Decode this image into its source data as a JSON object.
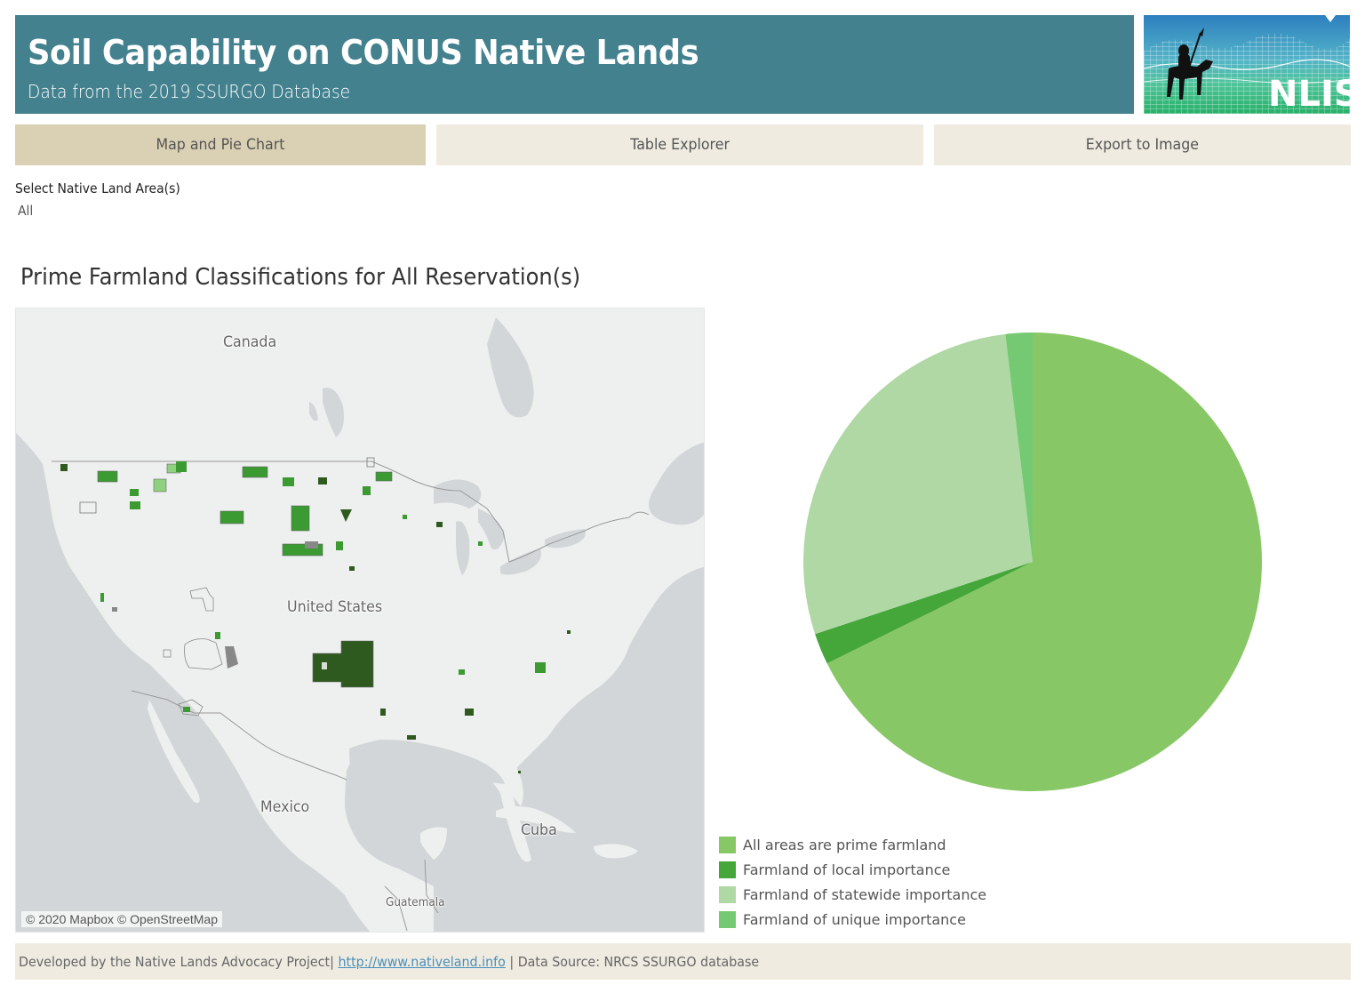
{
  "header": {
    "title": "Soil Capability on CONUS Native Lands",
    "subtitle": "Data from the 2019 SSURGO Database",
    "background_color": "#43818f",
    "logo": {
      "text": "NLIS",
      "icon": "horse-rider-logo-icon"
    }
  },
  "tabs": [
    {
      "label": "Map and Pie Chart",
      "active": true
    },
    {
      "label": "Table Explorer",
      "active": false
    },
    {
      "label": "Export to Image",
      "active": false
    }
  ],
  "filter": {
    "label": "Select Native Land Area(s)",
    "value": "All"
  },
  "section": {
    "title": "Prime Farmland Classifications for All Reservation(s)"
  },
  "map": {
    "labels": {
      "canada": "Canada",
      "united_states": "United States",
      "mexico": "Mexico",
      "cuba": "Cuba",
      "guatemala": "Guatemala"
    },
    "attribution": "© 2020 Mapbox © OpenStreetMap",
    "colors": {
      "water": "#d3d6d8",
      "land": "#eeefef",
      "border": "#9a9a9a",
      "reservation_dark": "#2f5a1f",
      "reservation_mid": "#3b9a32",
      "reservation_light": "#8fd17f"
    }
  },
  "legend": {
    "items": [
      {
        "label": "All areas are prime farmland",
        "color": "#88c766"
      },
      {
        "label": "Farmland of local importance",
        "color": "#45a63a"
      },
      {
        "label": "Farmland of statewide importance",
        "color": "#afd8a4"
      },
      {
        "label": "Farmland of unique importance",
        "color": "#76c973"
      }
    ]
  },
  "chart_data": {
    "type": "pie",
    "title": "Prime Farmland Classifications for All Reservation(s)",
    "categories": [
      "All areas are prime farmland",
      "Farmland of local importance",
      "Farmland of statewide importance",
      "Farmland of unique importance"
    ],
    "values": [
      67.7,
      2.2,
      28.2,
      1.9
    ],
    "units": "percent (estimated from slice angles)",
    "colors": [
      "#88c766",
      "#45a63a",
      "#afd8a4",
      "#76c973"
    ],
    "start_angle_deg": 0,
    "direction": "clockwise",
    "legend_position": "bottom-left"
  },
  "footer": {
    "prefix": "Developed by the Native Lands Advocacy Project| ",
    "link": "http://www.nativeland.info",
    "suffix": " | Data Source: NRCS SSURGO database"
  }
}
